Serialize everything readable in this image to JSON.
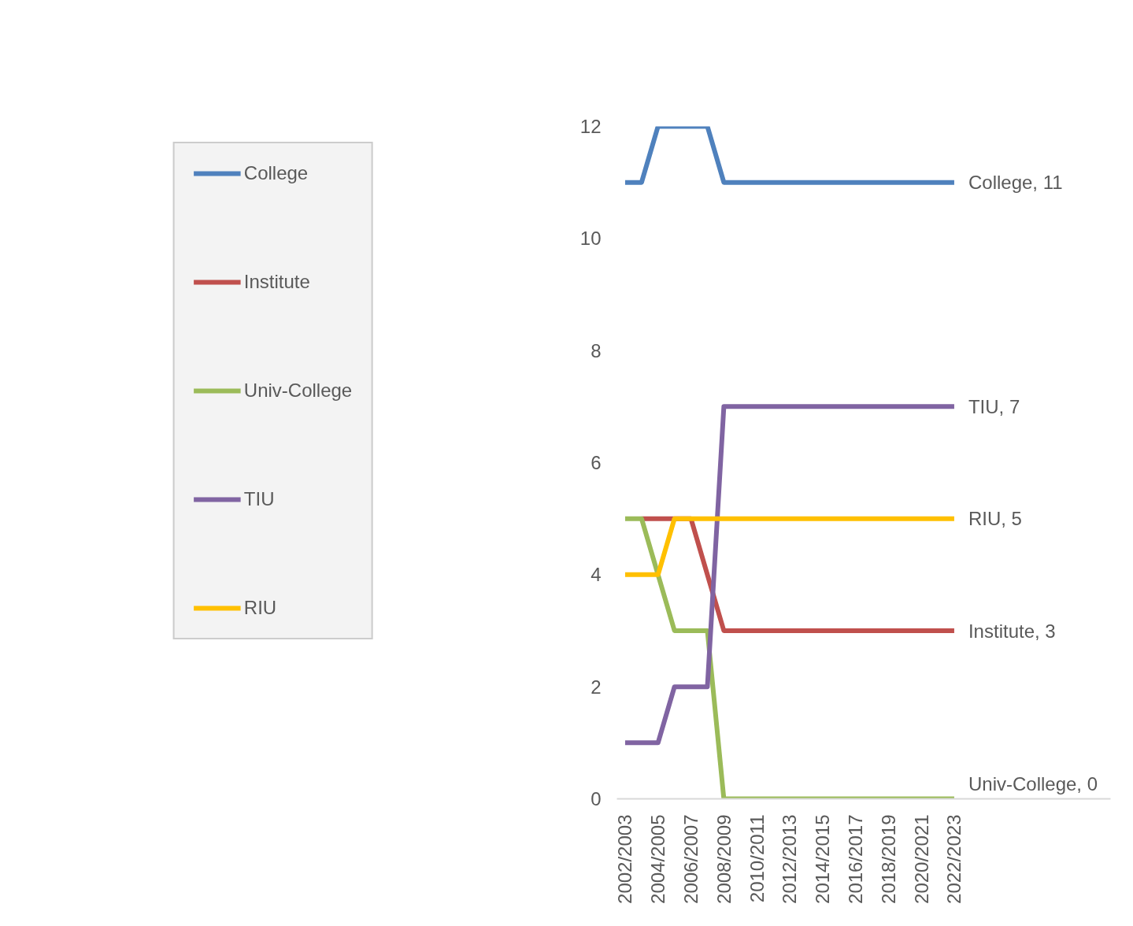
{
  "chart_data": {
    "type": "line",
    "categories": [
      "2002/2003",
      null,
      "2004/2005",
      null,
      "2006/2007",
      null,
      "2008/2009",
      null,
      "2010/2011",
      null,
      "2012/2013",
      null,
      "2014/2015",
      null,
      "2016/2017",
      null,
      "2018/2019",
      null,
      "2020/2021",
      null,
      "2022/2023"
    ],
    "series": [
      {
        "name": "College",
        "color": "#4f81bd",
        "values": [
          11,
          11,
          12,
          12,
          12,
          12,
          11,
          11,
          11,
          11,
          11,
          11,
          11,
          11,
          11,
          11,
          11,
          11,
          11,
          11,
          11
        ]
      },
      {
        "name": "Institute",
        "color": "#c0504d",
        "values": [
          null,
          5,
          5,
          5,
          5,
          4,
          3,
          3,
          3,
          3,
          3,
          3,
          3,
          3,
          3,
          3,
          3,
          3,
          3,
          3,
          3
        ]
      },
      {
        "name": "Univ-College",
        "color": "#9bbb59",
        "values": [
          5,
          5,
          4,
          3,
          3,
          3,
          0,
          0,
          0,
          0,
          0,
          0,
          0,
          0,
          0,
          0,
          0,
          0,
          0,
          0,
          0
        ]
      },
      {
        "name": "TIU",
        "color": "#8064a2",
        "values": [
          1,
          1,
          1,
          2,
          2,
          2,
          7,
          7,
          7,
          7,
          7,
          7,
          7,
          7,
          7,
          7,
          7,
          7,
          7,
          7,
          7
        ]
      },
      {
        "name": "RIU",
        "color": "#ffc000",
        "values": [
          4,
          4,
          4,
          5,
          5,
          5,
          5,
          5,
          5,
          5,
          5,
          5,
          5,
          5,
          5,
          5,
          5,
          5,
          5,
          5,
          5
        ]
      }
    ],
    "annotations": [
      {
        "text": "College, 11",
        "x": "2022/2023",
        "y": 11
      },
      {
        "text": "TIU, 7",
        "x": "2022/2023",
        "y": 7
      },
      {
        "text": "RIU, 5",
        "x": "2022/2023",
        "y": 5
      },
      {
        "text": "Institute, 3",
        "x": "2022/2023",
        "y": 3
      },
      {
        "text": "Univ-College, 0",
        "x": "2022/2023",
        "y": 0
      }
    ],
    "ylim": [
      0,
      12
    ],
    "yticks": [
      0,
      2,
      4,
      6,
      8,
      10,
      12
    ],
    "grid": false,
    "legend": "left",
    "marker": "none",
    "line_style": "solid"
  }
}
